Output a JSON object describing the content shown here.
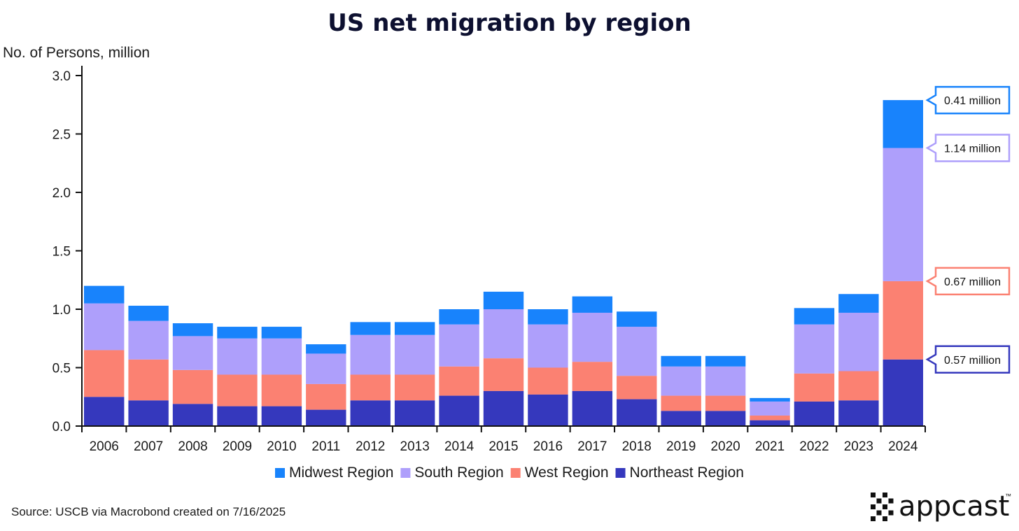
{
  "chart_data": {
    "type": "bar",
    "stacked": true,
    "title": "US net migration by region",
    "ylabel": "No. of Persons, million",
    "xlabel": "",
    "ylim": [
      0,
      3.0
    ],
    "yticks": [
      "0.0",
      "0.5",
      "1.0",
      "1.5",
      "2.0",
      "2.5",
      "3.0"
    ],
    "ytick_values": [
      0,
      0.5,
      1.0,
      1.5,
      2.0,
      2.5,
      3.0
    ],
    "categories": [
      "2006",
      "2007",
      "2008",
      "2009",
      "2010",
      "2011",
      "2012",
      "2013",
      "2014",
      "2015",
      "2016",
      "2017",
      "2018",
      "2019",
      "2020",
      "2021",
      "2022",
      "2023",
      "2024"
    ],
    "series": [
      {
        "name": "Northeast Region",
        "color": "#3538bd",
        "values": [
          0.25,
          0.22,
          0.19,
          0.17,
          0.17,
          0.14,
          0.22,
          0.22,
          0.26,
          0.3,
          0.27,
          0.3,
          0.23,
          0.13,
          0.13,
          0.05,
          0.21,
          0.22,
          0.57
        ]
      },
      {
        "name": "West Region",
        "color": "#fb8172",
        "values": [
          0.4,
          0.35,
          0.29,
          0.27,
          0.27,
          0.22,
          0.22,
          0.22,
          0.25,
          0.28,
          0.23,
          0.25,
          0.2,
          0.13,
          0.13,
          0.04,
          0.24,
          0.25,
          0.67
        ]
      },
      {
        "name": "South Region",
        "color": "#ae9ffb",
        "values": [
          0.4,
          0.33,
          0.29,
          0.31,
          0.31,
          0.26,
          0.34,
          0.34,
          0.36,
          0.42,
          0.37,
          0.42,
          0.42,
          0.25,
          0.25,
          0.12,
          0.42,
          0.5,
          1.14
        ]
      },
      {
        "name": "Midwest Region",
        "color": "#1883fc",
        "values": [
          0.15,
          0.13,
          0.11,
          0.1,
          0.1,
          0.08,
          0.11,
          0.11,
          0.13,
          0.15,
          0.13,
          0.14,
          0.13,
          0.09,
          0.09,
          0.03,
          0.14,
          0.16,
          0.41
        ]
      }
    ],
    "legend": {
      "position": "bottom",
      "order": [
        "Midwest Region",
        "South Region",
        "West Region",
        "Northeast Region"
      ]
    },
    "annotations": [
      {
        "series": "Midwest Region",
        "category": "2024",
        "text": "0.41 million"
      },
      {
        "series": "South Region",
        "category": "2024",
        "text": "1.14 million"
      },
      {
        "series": "West Region",
        "category": "2024",
        "text": "0.67 million"
      },
      {
        "series": "Northeast Region",
        "category": "2024",
        "text": "0.57 million"
      }
    ]
  },
  "source": "Source: USCB via Macrobond created on 7/16/2025",
  "brand": {
    "name": "appcast",
    "tm": "™"
  },
  "colors": {
    "axis": "#111111",
    "title": "#0d1030"
  }
}
